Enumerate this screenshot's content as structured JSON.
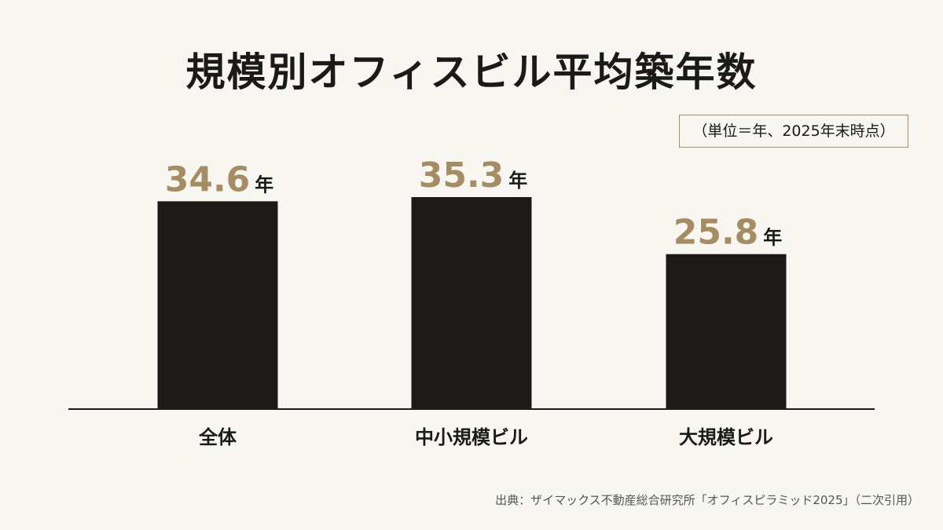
{
  "chart_data": {
    "type": "bar",
    "title": "規模別オフィスビル平均築年数",
    "subtitle": "（単位＝年、2025年末時点）",
    "categories": [
      "全体",
      "中小規模ビル",
      "大規模ビル"
    ],
    "values": [
      34.6,
      35.3,
      25.8
    ],
    "value_labels": [
      "34.6",
      "35.3",
      "25.8"
    ],
    "value_unit": "年",
    "xlabel": "",
    "ylabel": "",
    "ylim": [
      0,
      35.3
    ],
    "grid": false,
    "legend": "none",
    "colors": {
      "bar": "#1b1a17",
      "value_text": "#a58c63",
      "axis": "#1b1a17"
    }
  },
  "source": "出典：ザイマックス不動産総合研究所「オフィスピラミッド2025」（二次引用）"
}
